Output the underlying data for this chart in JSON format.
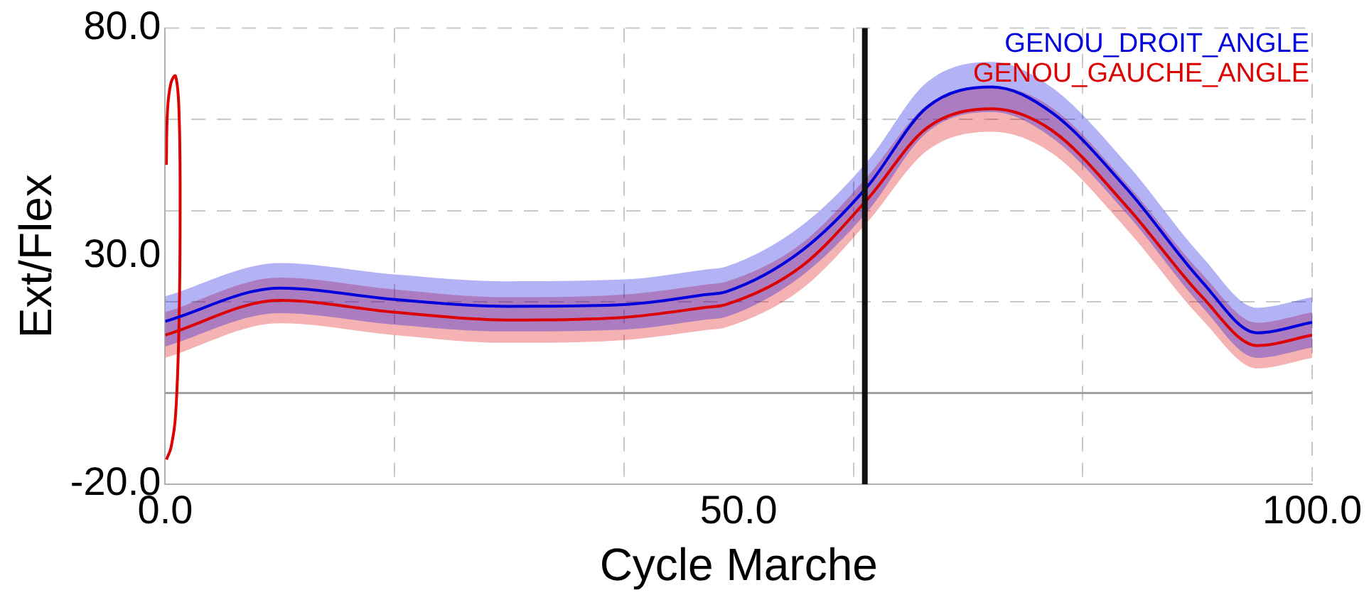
{
  "chart_data": {
    "type": "line",
    "xlabel": "Cycle Marche",
    "ylabel": "Ext/Flex",
    "xlim": [
      0,
      100
    ],
    "ylim": [
      -20,
      80
    ],
    "xticks": [
      {
        "value": 0,
        "label": "0.0"
      },
      {
        "value": 20,
        "label": null
      },
      {
        "value": 40,
        "label": null
      },
      {
        "value": 50,
        "label": "50.0"
      },
      {
        "value": 60,
        "label": null
      },
      {
        "value": 80,
        "label": null
      },
      {
        "value": 100,
        "label": "100.0"
      }
    ],
    "yticks": [
      {
        "value": -20,
        "label": "-20.0"
      },
      {
        "value": 0,
        "label": null
      },
      {
        "value": 20,
        "label": null
      },
      {
        "value": 30,
        "label": "30.0"
      },
      {
        "value": 40,
        "label": null
      },
      {
        "value": 60,
        "label": null
      },
      {
        "value": 80,
        "label": "80.0"
      }
    ],
    "grid": true,
    "legend": "top right",
    "marker": "none",
    "line_style": "solid",
    "x": [
      0,
      10,
      20,
      29.7,
      40,
      47.2,
      48.9,
      55.5,
      61.2,
      66.4,
      72.1,
      77.3,
      83.9,
      90.4,
      95.2,
      100
    ],
    "series": [
      {
        "name": "GENOU_DROIT_ANGLE",
        "color": "#0000dd",
        "values": [
          15.7,
          23,
          20.5,
          19,
          19.4,
          21.6,
          22.2,
          31.2,
          45.2,
          62.6,
          67.1,
          61.5,
          44.6,
          24.4,
          13.2,
          15.5
        ],
        "lower": [
          10.2,
          17.5,
          15,
          13.5,
          13.9,
          16.1,
          16.7,
          25.7,
          39.7,
          57.1,
          61.6,
          56,
          39.1,
          18.9,
          7.7,
          10
        ],
        "upper": [
          21.2,
          28.5,
          26,
          24.5,
          24.9,
          27.1,
          27.7,
          36.7,
          50.7,
          68.1,
          72.6,
          67,
          50.1,
          29.9,
          18.7,
          21
        ]
      },
      {
        "name": "GENOU_GAUCHE_ANGLE",
        "color": "#dd0000",
        "values": [
          12.7,
          20.3,
          17.7,
          16,
          16.6,
          18.8,
          19.4,
          27.8,
          42.4,
          58.1,
          62.3,
          57.6,
          40.7,
          21.1,
          10.4,
          12.7
        ],
        "lower": [
          7.7,
          15.3,
          12.7,
          11,
          11.6,
          13.8,
          14.4,
          22.8,
          37.4,
          53.1,
          57.3,
          52.6,
          35.7,
          16.1,
          5.4,
          7.7
        ],
        "upper": [
          17.7,
          25.3,
          22.7,
          21,
          21.6,
          23.8,
          24.4,
          32.8,
          47.4,
          63.1,
          67.3,
          62.6,
          45.7,
          26.1,
          15.4,
          17.7
        ]
      },
      {
        "color": "#dd0000",
        "x": [
          0.1,
          0.2,
          0.5,
          0.9,
          1.2,
          1.3,
          1.2,
          0.9,
          0.5,
          0.1
        ],
        "values": [
          50,
          62,
          68,
          69.5,
          62,
          40,
          15,
          -5,
          -12,
          -14.6
        ]
      }
    ],
    "ref_lines": [
      {
        "axis": "y",
        "value": 0,
        "color": "#a0a0a0"
      },
      {
        "axis": "x",
        "value": 61,
        "color": "#111111"
      }
    ]
  }
}
